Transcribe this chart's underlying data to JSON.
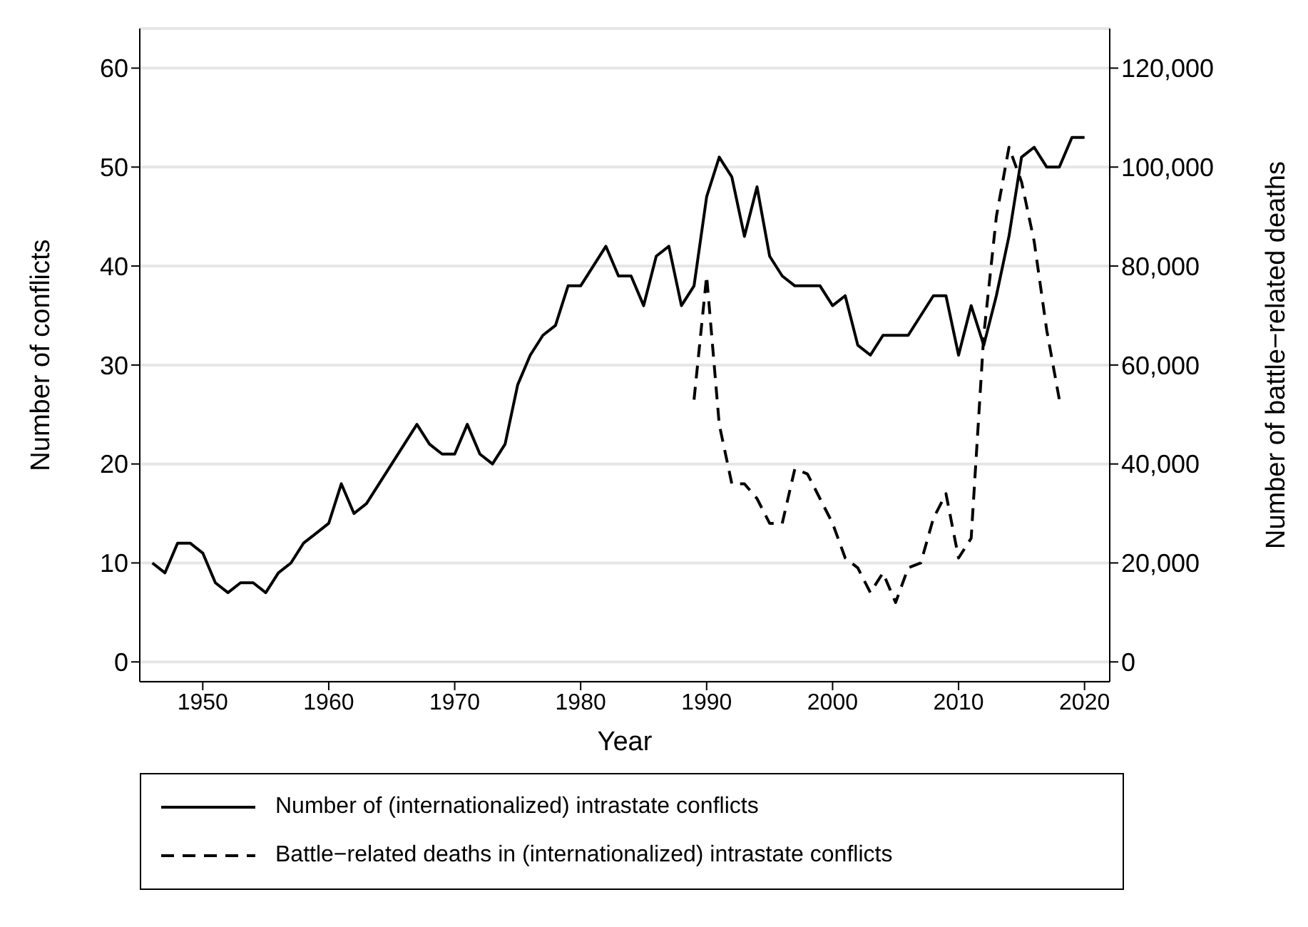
{
  "chart_data": {
    "type": "line",
    "xlabel": "Year",
    "ylabel": "Number of conflicts",
    "y2label": "Number of battle−related deaths",
    "xlim": [
      1945,
      2022
    ],
    "xticks": [
      1950,
      1960,
      1970,
      1980,
      1990,
      2000,
      2010,
      2020
    ],
    "ylim": [
      -2,
      64
    ],
    "yticks": [
      0,
      10,
      20,
      30,
      40,
      50,
      60
    ],
    "y2lim": [
      -4000,
      128000
    ],
    "y2ticks": [
      {
        "value": 0,
        "label": "0"
      },
      {
        "value": 20000,
        "label": "20,000"
      },
      {
        "value": 40000,
        "label": "40,000"
      },
      {
        "value": 60000,
        "label": "60,000"
      },
      {
        "value": 80000,
        "label": "80,000"
      },
      {
        "value": 100000,
        "label": "100,000"
      },
      {
        "value": 120000,
        "label": "120,000"
      }
    ],
    "grid": "y",
    "legend": "bottom",
    "marker": "none",
    "series": [
      {
        "name": "Number of (internationalized) intrastate conflicts",
        "color": "#000000",
        "line_style": "solid",
        "x": [
          1946,
          1947,
          1948,
          1949,
          1950,
          1951,
          1952,
          1953,
          1954,
          1955,
          1956,
          1957,
          1958,
          1959,
          1960,
          1961,
          1962,
          1963,
          1964,
          1965,
          1966,
          1967,
          1968,
          1969,
          1970,
          1971,
          1972,
          1973,
          1974,
          1975,
          1976,
          1977,
          1978,
          1979,
          1980,
          1981,
          1982,
          1983,
          1984,
          1985,
          1986,
          1987,
          1988,
          1989,
          1990,
          1991,
          1992,
          1993,
          1994,
          1995,
          1996,
          1997,
          1998,
          1999,
          2000,
          2001,
          2002,
          2003,
          2004,
          2005,
          2006,
          2007,
          2008,
          2009,
          2010,
          2011,
          2012,
          2013,
          2014,
          2015,
          2016,
          2017,
          2018,
          2019,
          2020
        ],
        "values": [
          10,
          9,
          12,
          12,
          11,
          8,
          7,
          8,
          8,
          7,
          9,
          10,
          12,
          13,
          14,
          18,
          15,
          16,
          18,
          20,
          22,
          24,
          22,
          21,
          21,
          24,
          21,
          20,
          22,
          28,
          31,
          33,
          34,
          38,
          38,
          40,
          42,
          39,
          39,
          36,
          41,
          42,
          36,
          38,
          47,
          51,
          49,
          43,
          48,
          41,
          39,
          38,
          38,
          38,
          36,
          37,
          32,
          31,
          33,
          33,
          33,
          35,
          37,
          37,
          31,
          36,
          32,
          37,
          43,
          51,
          52,
          50,
          50,
          53,
          53
        ]
      },
      {
        "name": "Battle−related deaths in (internationalized) intrastate conflicts",
        "color": "#000000",
        "line_style": "dashed",
        "axis": "y2",
        "x": [
          1989,
          1990,
          1991,
          1992,
          1993,
          1994,
          1995,
          1996,
          1997,
          1998,
          1999,
          2000,
          2001,
          2002,
          2003,
          2004,
          2005,
          2006,
          2007,
          2008,
          2009,
          2010,
          2011,
          2012,
          2013,
          2014,
          2015,
          2016,
          2017,
          2018
        ],
        "values": [
          53000,
          78000,
          48000,
          36000,
          36000,
          33000,
          28000,
          28000,
          39000,
          38000,
          33000,
          28000,
          21000,
          19000,
          14000,
          18000,
          12000,
          19000,
          20000,
          29000,
          34000,
          21000,
          25000,
          66000,
          90000,
          104000,
          97000,
          85000,
          67000,
          53000
        ]
      }
    ]
  }
}
